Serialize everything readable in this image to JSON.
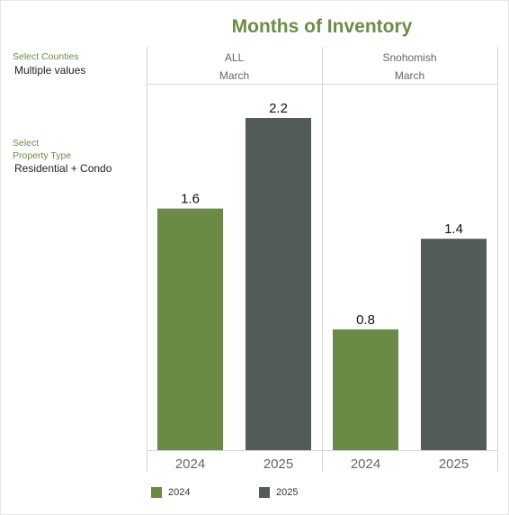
{
  "title": "Months of Inventory",
  "filters": [
    {
      "label": "Select Counties",
      "value": "Multiple values"
    },
    {
      "label": "Select\nProperty Type",
      "value": "Residential + Condo"
    }
  ],
  "colors": {
    "year_2024": "#6a8a45",
    "year_2025": "#535c59",
    "title": "#6b8d45"
  },
  "chart_data": {
    "type": "bar",
    "title": "Months of Inventory",
    "ylim": [
      0,
      2.2
    ],
    "grid": false,
    "legend": "bottom",
    "panels": [
      {
        "county": "ALL",
        "month": "March",
        "categories": [
          "2024",
          "2025"
        ],
        "values": [
          1.6,
          2.2
        ],
        "labels": [
          "1.6",
          "2.2"
        ]
      },
      {
        "county": "Snohomish",
        "month": "March",
        "categories": [
          "2024",
          "2025"
        ],
        "values": [
          0.8,
          1.4
        ],
        "labels": [
          "0.8",
          "1.4"
        ]
      }
    ],
    "legend_entries": [
      "2024",
      "2025"
    ]
  }
}
